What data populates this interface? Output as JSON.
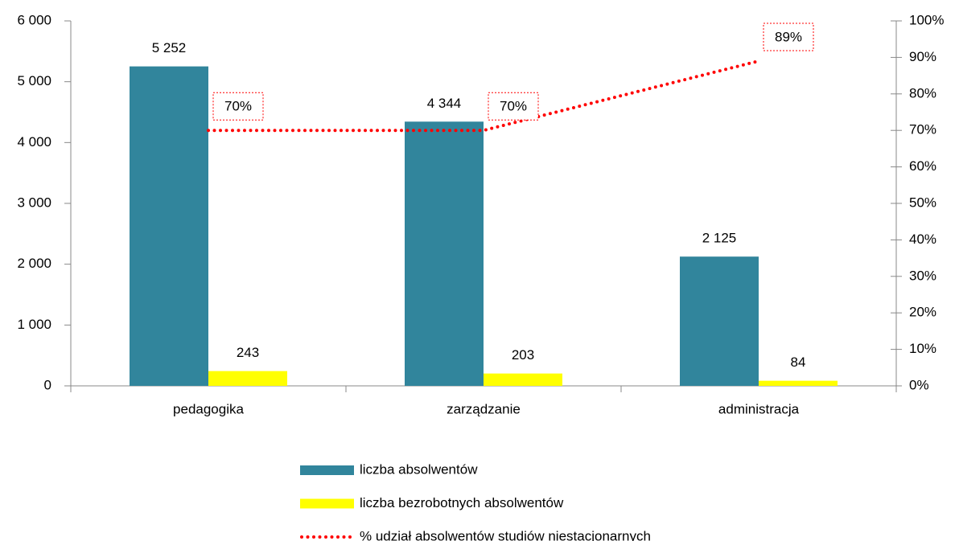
{
  "chart_data": {
    "type": "bar",
    "categories": [
      "pedagogika",
      "zarządzanie",
      "administracja"
    ],
    "series": [
      {
        "name": "liczba absolwentów",
        "color": "#31859c",
        "values": [
          5252,
          4344,
          2125
        ],
        "value_labels": [
          "5 252",
          "4 344",
          "2 125"
        ]
      },
      {
        "name": "liczba bezrobotnych absolwentów",
        "color": "#ffff00",
        "values": [
          243,
          203,
          84
        ]
      },
      {
        "name": "% udział absolwentów studiów niestacjonarnych",
        "type": "line",
        "axis": "y2",
        "color": "#ff0000",
        "values": [
          70,
          70,
          89
        ],
        "value_labels": [
          "70%",
          "70%",
          "89%"
        ]
      }
    ],
    "ylim": [
      0,
      6000
    ],
    "yticks": [
      0,
      {
        "value": 1000,
        "label": "1 000"
      },
      {
        "value": 2000,
        "label": "2 000"
      },
      {
        "value": 3000,
        "label": "3 000"
      },
      {
        "value": 4000,
        "label": "4 000"
      },
      {
        "value": 5000,
        "label": "5 000"
      },
      {
        "value": 6000,
        "label": "6 000"
      }
    ],
    "y2lim": [
      0,
      100
    ],
    "y2ticks": [
      {
        "value": 0,
        "label": "0%"
      },
      {
        "value": 10,
        "label": "10%"
      },
      {
        "value": 20,
        "label": "20%"
      },
      {
        "value": 30,
        "label": "30%"
      },
      {
        "value": 40,
        "label": "40%"
      },
      {
        "value": 50,
        "label": "50%"
      },
      {
        "value": 60,
        "label": "60%"
      },
      {
        "value": 70,
        "label": "70%"
      },
      {
        "value": 80,
        "label": "80%"
      },
      {
        "value": 90,
        "label": "90%"
      },
      {
        "value": 100,
        "label": "100%"
      }
    ],
    "legend": "bottom"
  }
}
